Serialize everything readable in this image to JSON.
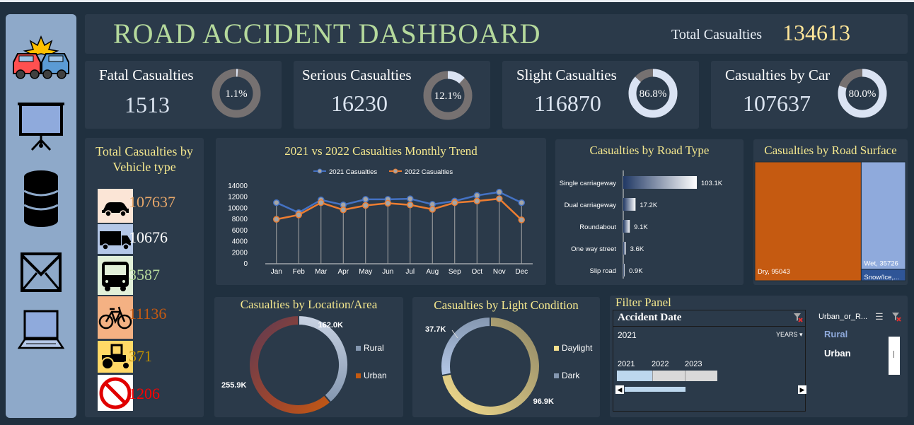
{
  "header": {
    "title": "ROAD ACCIDENT DASHBOARD",
    "total_label": "Total Casualties",
    "total_value": "134613"
  },
  "sidebar": {
    "icons": [
      "car-crash-icon",
      "presentation-board-icon",
      "database-icon",
      "mail-icon",
      "laptop-icon"
    ]
  },
  "kpis": [
    {
      "label": "Fatal Casualties",
      "value": "1513",
      "pct_label": "1.1%",
      "pct": 0.011
    },
    {
      "label": "Serious Casualties",
      "value": "16230",
      "pct_label": "12.1%",
      "pct": 0.121
    },
    {
      "label": "Slight Casualties",
      "value": "116870",
      "pct_label": "86.8%",
      "pct": 0.868
    },
    {
      "label": "Casualties by Car",
      "value": "107637",
      "pct_label": "80.0%",
      "pct": 0.8
    }
  ],
  "vehicle": {
    "title_line1": "Total Casualties by",
    "title_line2": "Vehicle type",
    "items": [
      {
        "icon": "car-icon",
        "value": "107637",
        "color": "#e8a86b",
        "bg": "#fbe5d6"
      },
      {
        "icon": "truck-icon",
        "value": "10676",
        "color": "#ffffff",
        "bg": "#b4c7e7"
      },
      {
        "icon": "bus-icon",
        "value": "3587",
        "color": "#b5d99c",
        "bg": "#e2f0d9"
      },
      {
        "icon": "bicycle-icon",
        "value": "11136",
        "color": "#c55a11",
        "bg": "#f4b183"
      },
      {
        "icon": "tractor-icon",
        "value": "371",
        "color": "#bf9000",
        "bg": "#ffd966"
      },
      {
        "icon": "no-entry-icon",
        "value": "1206",
        "color": "#ff0000",
        "bg": "#ffffff"
      }
    ]
  },
  "chart_data": [
    {
      "type": "line",
      "title": "2021 vs 2022 Casualties Monthly Trend",
      "categories": [
        "Jan",
        "Feb",
        "Mar",
        "Apr",
        "May",
        "Jun",
        "Jul",
        "Aug",
        "Sep",
        "Oct",
        "Nov",
        "Dec"
      ],
      "series": [
        {
          "name": "2021 Casualties",
          "values": [
            11000,
            9200,
            11500,
            10600,
            11600,
            11600,
            11700,
            10700,
            11300,
            12300,
            12900,
            11000
          ],
          "color": "#4472c4"
        },
        {
          "name": "2022 Casualties",
          "values": [
            8000,
            8800,
            11000,
            9700,
            10500,
            10900,
            10600,
            9800,
            11000,
            11300,
            11700,
            7900
          ],
          "color": "#ed7d31"
        }
      ],
      "y_ticks": [
        "0",
        "2000",
        "4000",
        "6000",
        "8000",
        "10000",
        "12000",
        "14000"
      ],
      "ylim": [
        0,
        14000
      ],
      "legend": "top"
    },
    {
      "type": "bar",
      "orientation": "horizontal",
      "title": "Casualties by Road Type",
      "categories": [
        "Single carriageway",
        "Dual carriageway",
        "Roundabout",
        "One way street",
        "Slip road"
      ],
      "values": [
        103100,
        17200,
        9100,
        3600,
        900
      ],
      "labels": [
        "103.1K",
        "17.2K",
        "9.1K",
        "3.6K",
        "0.9K"
      ]
    },
    {
      "type": "treemap",
      "title": "Casualties by Road Surface",
      "items": [
        {
          "name": "Dry",
          "value": 95043,
          "label": "Dry, 95043",
          "color": "#c55a11"
        },
        {
          "name": "Wet",
          "value": 35726,
          "label": "Wet, 35726",
          "color": "#8faadc"
        },
        {
          "name": "Snow/Ice",
          "value": 3844,
          "label": "Snow/Ice,...",
          "color": "#2f5597"
        }
      ]
    },
    {
      "type": "pie",
      "variant": "donut",
      "title": "Casualties by Location/Area",
      "slices": [
        {
          "name": "Rural",
          "value": 162000,
          "label": "162.0K"
        },
        {
          "name": "Urban",
          "value": 255900,
          "label": "255.9K"
        }
      ],
      "legend": "right"
    },
    {
      "type": "pie",
      "variant": "donut",
      "title": "Casualties by Light Condition",
      "slices": [
        {
          "name": "Daylight",
          "value": 96900,
          "label": "96.9K"
        },
        {
          "name": "Dark",
          "value": 37700,
          "label": "37.7K"
        }
      ],
      "legend": "right"
    }
  ],
  "filter": {
    "title": "Filter Panel",
    "date_header": "Accident Date",
    "date_value": "2021",
    "period_label": "YEARS",
    "years": [
      "2021",
      "2022",
      "2023"
    ],
    "area_header": "Urban_or_R...",
    "area_items": [
      "Rural",
      "Urban"
    ]
  }
}
